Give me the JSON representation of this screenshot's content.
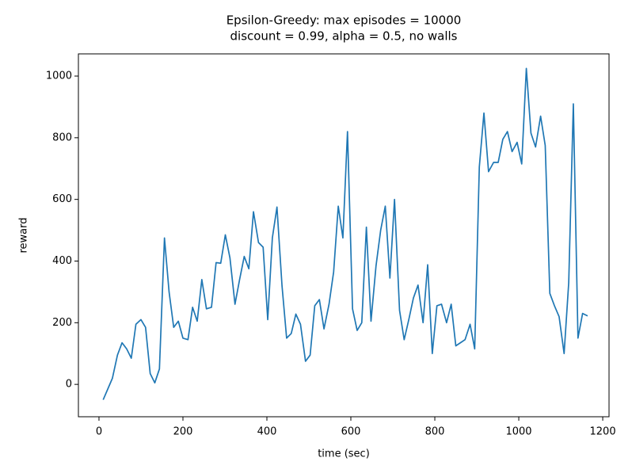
{
  "chart_data": {
    "type": "line",
    "title": "Epsilon-Greedy: max episodes = 10000",
    "subtitle": "discount = 0.99, alpha = 0.5, no walls",
    "x_label": "time (sec)",
    "y_label": "reward",
    "x": [
      10,
      21,
      32,
      44,
      55,
      66,
      77,
      88,
      100,
      111,
      122,
      133,
      144,
      156,
      167,
      178,
      189,
      200,
      212,
      223,
      234,
      245,
      256,
      268,
      279,
      290,
      301,
      312,
      324,
      335,
      346,
      357,
      368,
      380,
      391,
      402,
      413,
      424,
      436,
      447,
      458,
      469,
      480,
      492,
      503,
      514,
      525,
      536,
      548,
      559,
      570,
      581,
      592,
      604,
      615,
      626,
      637,
      648,
      660,
      671,
      682,
      693,
      704,
      716,
      727,
      738,
      749,
      760,
      772,
      783,
      794,
      805,
      816,
      828,
      839,
      850,
      861,
      872,
      884,
      895,
      906,
      917,
      928,
      940,
      951,
      962,
      973,
      984,
      996,
      1007,
      1018,
      1029,
      1040,
      1052,
      1063,
      1074,
      1085,
      1096,
      1108,
      1119,
      1130,
      1141,
      1152,
      1164
    ],
    "series": [
      {
        "name": "reward",
        "color": "#1f77b4",
        "values": [
          -50,
          -15,
          20,
          95,
          135,
          115,
          85,
          195,
          210,
          185,
          35,
          5,
          50,
          475,
          300,
          185,
          205,
          150,
          145,
          250,
          205,
          340,
          245,
          250,
          395,
          393,
          485,
          410,
          260,
          340,
          415,
          375,
          560,
          460,
          445,
          210,
          475,
          575,
          320,
          150,
          165,
          228,
          195,
          75,
          95,
          255,
          275,
          180,
          260,
          365,
          578,
          475,
          820,
          245,
          175,
          200,
          510,
          205,
          385,
          500,
          578,
          345,
          600,
          240,
          145,
          210,
          280,
          322,
          200,
          388,
          100,
          255,
          260,
          200,
          260,
          125,
          135,
          145,
          195,
          115,
          705,
          880,
          690,
          720,
          720,
          795,
          820,
          755,
          785,
          715,
          1025,
          815,
          770,
          870,
          775,
          295,
          255,
          220,
          100,
          330,
          910,
          150,
          230,
          222
        ]
      }
    ],
    "xlim": [
      -49,
      1215
    ],
    "ylim": [
      -105,
      1072
    ],
    "xticks": [
      0,
      200,
      400,
      600,
      800,
      1000,
      1200
    ],
    "yticks": [
      0,
      200,
      400,
      600,
      800,
      1000
    ],
    "grid": false
  }
}
